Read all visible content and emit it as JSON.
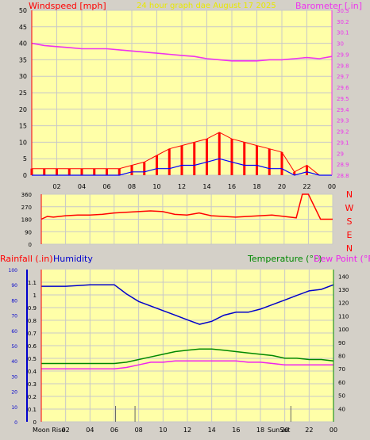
{
  "colors": {
    "background": "#d4d0c8",
    "plot_bg": "#ffffa8",
    "grid": "#c8c8c8",
    "wind": "#ff0000",
    "gust": "#0000ff",
    "barometer": "#ee33ee",
    "humidity": "#0000cc",
    "temperature": "#008800",
    "dewpoint": "#ee22ee",
    "title": "#e8e800",
    "rain": "#ff0000",
    "temp_label": "#008800"
  },
  "header": {
    "wind_label": "Windspeed [mph]",
    "title": "24 hour graph dae   August 17 2025",
    "baro_label": "Barometer [.in]"
  },
  "compass": {
    "letters": [
      "N",
      "W",
      "S",
      "E",
      "N"
    ]
  },
  "lower_labels": {
    "rainfall": "Rainfall (.in)",
    "humidity": "Humidity",
    "temperature": "Temperature (°F)",
    "dewpoint": "Dew Point (°F)"
  },
  "bottom_labels": {
    "moon_rise": "Moon Rise",
    "sun_set": "SunSet"
  },
  "chart_data": [
    {
      "type": "line",
      "title": "24 hour graph dae   August 17 2025",
      "ylabel": "Windspeed [mph]",
      "y2label": "Barometer [.in]",
      "xticks": [
        "02",
        "04",
        "06",
        "08",
        "10",
        "12",
        "14",
        "16",
        "18",
        "20",
        "22",
        "00"
      ],
      "ylim": [
        0,
        50
      ],
      "yticks": [
        0,
        5,
        10,
        15,
        20,
        25,
        30,
        35,
        40,
        45,
        50
      ],
      "y2lim": [
        28.8,
        30.3
      ],
      "y2ticks": [
        "28.8",
        "28.9",
        "29",
        "29.1",
        "29.2",
        "29.3",
        "29.4",
        "29.5",
        "29.6",
        "29.7",
        "29.8",
        "29.9",
        "30",
        "30.1",
        "30.2",
        "30.3"
      ],
      "x_range_hours": [
        0,
        24
      ],
      "series": [
        {
          "name": "Barometer",
          "x": [
            0,
            1,
            2,
            3,
            4,
            5,
            6,
            7,
            8,
            9,
            10,
            11,
            12,
            13,
            14,
            15,
            16,
            17,
            18,
            19,
            20,
            21,
            22,
            23,
            24
          ],
          "values": [
            30.0,
            29.98,
            29.97,
            29.96,
            29.95,
            29.95,
            29.95,
            29.94,
            29.93,
            29.92,
            29.91,
            29.9,
            29.89,
            29.88,
            29.86,
            29.85,
            29.84,
            29.84,
            29.84,
            29.85,
            29.85,
            29.86,
            29.87,
            29.86,
            29.88
          ]
        },
        {
          "name": "Windspeed",
          "x": [
            0,
            1,
            2,
            3,
            4,
            5,
            6,
            7,
            8,
            9,
            10,
            11,
            12,
            13,
            14,
            15,
            16,
            17,
            18,
            19,
            20,
            21,
            22,
            23,
            24
          ],
          "values": [
            2,
            2,
            2,
            2,
            2,
            2,
            2,
            2,
            3,
            4,
            6,
            8,
            9,
            10,
            11,
            13,
            11,
            10,
            9,
            8,
            7,
            1,
            3,
            0,
            0
          ]
        },
        {
          "name": "Gust",
          "x": [
            0,
            1,
            2,
            3,
            4,
            5,
            6,
            7,
            8,
            9,
            10,
            11,
            12,
            13,
            14,
            15,
            16,
            17,
            18,
            19,
            20,
            21,
            22,
            23,
            24
          ],
          "values": [
            0,
            0,
            0,
            0,
            0,
            0,
            0,
            0,
            1,
            1,
            2,
            2,
            3,
            3,
            4,
            5,
            4,
            3,
            3,
            2,
            2,
            0,
            1,
            0,
            0
          ]
        }
      ]
    },
    {
      "type": "line",
      "xticks": [],
      "yticks": [
        0,
        90,
        180,
        270,
        360
      ],
      "ylim": [
        0,
        360
      ],
      "series": [
        {
          "name": "Wind Direction",
          "x": [
            0,
            0.5,
            1,
            2,
            3,
            4,
            5,
            6,
            7,
            8,
            9,
            10,
            11,
            12,
            13,
            14,
            15,
            16,
            17,
            18,
            19,
            20,
            21,
            21.5,
            22,
            23,
            24
          ],
          "values": [
            180,
            200,
            195,
            205,
            210,
            210,
            215,
            225,
            230,
            235,
            240,
            235,
            215,
            210,
            225,
            205,
            200,
            195,
            200,
            205,
            210,
            200,
            190,
            360,
            360,
            180,
            180
          ]
        }
      ]
    },
    {
      "type": "line",
      "xticks": [
        "02",
        "04",
        "06",
        "08",
        "10",
        "12",
        "14",
        "16",
        "18",
        "20",
        "22",
        "00"
      ],
      "ylim_humidity": [
        0,
        100
      ],
      "yticks_humidity": [
        0,
        10,
        20,
        30,
        40,
        50,
        60,
        70,
        80,
        90,
        100
      ],
      "ylim_rain": [
        0,
        1.2
      ],
      "yticks_rain": [
        "0",
        "0.1",
        "0.2",
        "0.3",
        "0.4",
        "0.5",
        "0.6",
        "0.7",
        "0.8",
        "0.9",
        "1",
        "1.1"
      ],
      "ylim_temp": [
        30,
        145
      ],
      "yticks_temp": [
        40,
        50,
        60,
        70,
        80,
        90,
        100,
        110,
        120,
        130,
        140
      ],
      "series": [
        {
          "name": "Humidity",
          "x": [
            0,
            2,
            4,
            5,
            6,
            7,
            8,
            9,
            10,
            11,
            12,
            13,
            14,
            15,
            16,
            17,
            18,
            19,
            20,
            21,
            22,
            23,
            24
          ],
          "values": [
            89,
            89,
            90,
            90,
            90,
            84,
            79,
            76,
            73,
            70,
            67,
            64,
            66,
            70,
            72,
            72,
            74,
            77,
            80,
            83,
            86,
            87,
            90
          ]
        },
        {
          "name": "Temperature",
          "x": [
            0,
            2,
            4,
            5,
            6,
            7,
            8,
            9,
            10,
            11,
            12,
            13,
            14,
            15,
            16,
            17,
            18,
            19,
            20,
            21,
            22,
            23,
            24
          ],
          "values": [
            74,
            74,
            74,
            74,
            74,
            75,
            77,
            79,
            81,
            83,
            84,
            85,
            85,
            84,
            83,
            82,
            81,
            80,
            78,
            78,
            77,
            77,
            76
          ]
        },
        {
          "name": "Dew Point",
          "x": [
            0,
            2,
            4,
            5,
            6,
            7,
            8,
            9,
            10,
            11,
            12,
            13,
            14,
            15,
            16,
            17,
            18,
            19,
            20,
            21,
            22,
            23,
            24
          ],
          "values": [
            70,
            70,
            70,
            70,
            70,
            71,
            73,
            75,
            75,
            76,
            76,
            76,
            76,
            76,
            76,
            75,
            75,
            74,
            73,
            73,
            73,
            73,
            73
          ]
        },
        {
          "name": "Rainfall",
          "x": [
            0,
            24
          ],
          "values": [
            0,
            0
          ]
        }
      ]
    }
  ]
}
